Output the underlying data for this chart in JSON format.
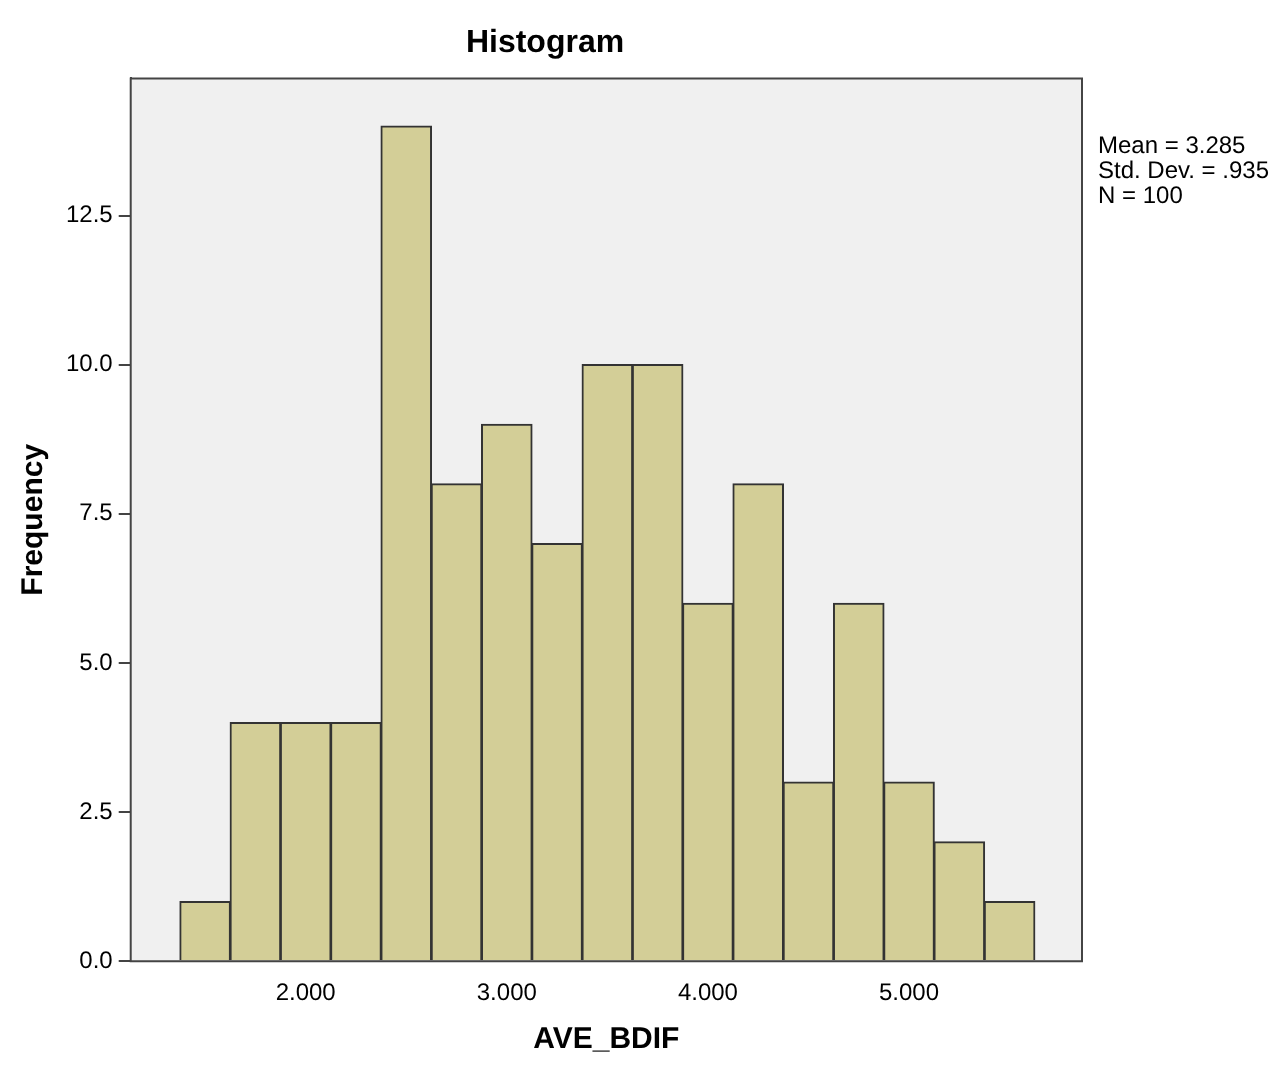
{
  "chart_data": {
    "type": "histogram",
    "title": "Histogram",
    "xlabel": "AVE_BDIF",
    "ylabel": "Frequency",
    "bins": [
      1.375,
      1.625,
      1.875,
      2.125,
      2.375,
      2.625,
      2.875,
      3.125,
      3.375,
      3.625,
      3.875,
      4.125,
      4.375,
      4.625,
      4.875,
      5.125,
      5.375,
      5.625
    ],
    "values": [
      1,
      4,
      4,
      4,
      14,
      8,
      9,
      7,
      10,
      10,
      6,
      8,
      3,
      6,
      3,
      2,
      1
    ],
    "color": "#d3ce97",
    "xlim": [
      1.13,
      5.86
    ],
    "xticks": [
      {
        "value": 2,
        "label": "2.000"
      },
      {
        "value": 3,
        "label": "3.000"
      },
      {
        "value": 4,
        "label": "4.000"
      },
      {
        "value": 5,
        "label": "5.000"
      }
    ],
    "ylim": [
      0,
      14.8
    ],
    "yticks": [
      {
        "value": 0,
        "label": "0.0"
      },
      {
        "value": 2.5,
        "label": "2.5"
      },
      {
        "value": 5,
        "label": "5.0"
      },
      {
        "value": 7.5,
        "label": "7.5"
      },
      {
        "value": 10,
        "label": "10.0"
      },
      {
        "value": 12.5,
        "label": "12.5"
      }
    ],
    "annotations": [
      "Mean = 3.285",
      "Std. Dev. = .935",
      "N = 100"
    ],
    "grid": false,
    "legend": false
  }
}
